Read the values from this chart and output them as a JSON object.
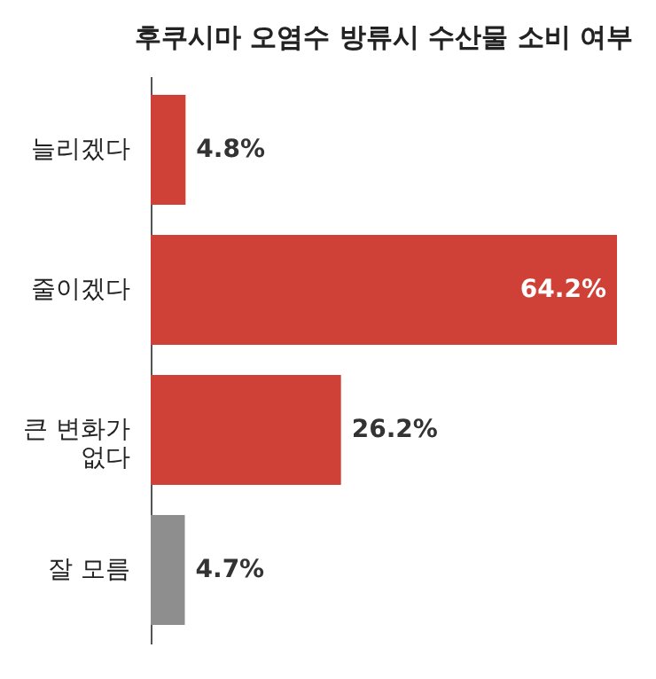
{
  "chart_data": {
    "type": "bar",
    "orientation": "horizontal",
    "title": "후쿠시마 오염수 방류시 수산물 소비 여부",
    "categories": [
      "늘리겠다",
      "줄이겠다",
      "큰 변화가\n없다",
      "잘 모름"
    ],
    "values": [
      4.8,
      64.2,
      26.2,
      4.7
    ],
    "colors": [
      "#cf4036",
      "#cf4036",
      "#cf4036",
      "#8e8e8e"
    ],
    "value_labels": [
      "4.8%",
      "64.2%",
      "26.2%",
      "4.7%"
    ]
  }
}
